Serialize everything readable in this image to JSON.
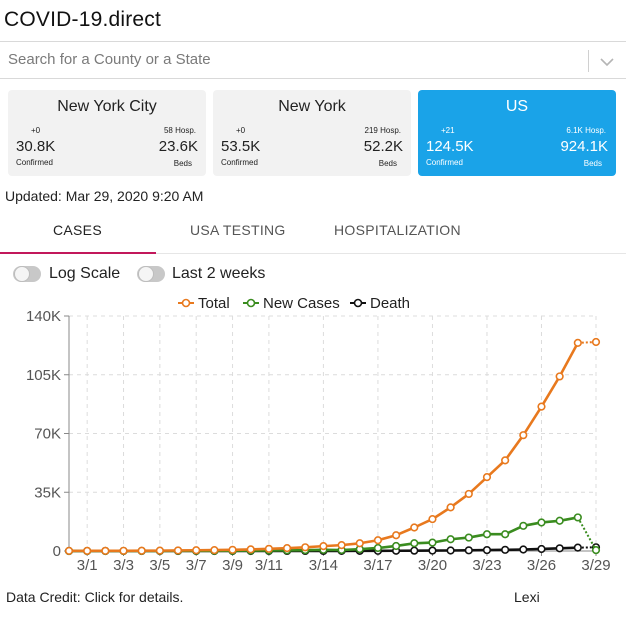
{
  "app": {
    "title": "COVID-19.direct"
  },
  "search": {
    "placeholder": "Search for a County or a State"
  },
  "cards": [
    {
      "title": "New York City",
      "delta": "+0",
      "hosp": "58 Hosp.",
      "confirmed": "30.8K",
      "confirmed_label": "Confirmed",
      "beds": "23.6K",
      "beds_label": "Beds",
      "selected": false
    },
    {
      "title": "New York",
      "delta": "+0",
      "hosp": "219 Hosp.",
      "confirmed": "53.5K",
      "confirmed_label": "Confirmed",
      "beds": "52.2K",
      "beds_label": "Beds",
      "selected": false
    },
    {
      "title": "US",
      "delta": "+21",
      "hosp": "6.1K Hosp.",
      "confirmed": "124.5K",
      "confirmed_label": "Confirmed",
      "beds": "924.1K",
      "beds_label": "Beds",
      "selected": true
    }
  ],
  "updated": "Updated: Mar 29, 2020 9:20 AM",
  "tabs": [
    {
      "label": "CASES",
      "active": true
    },
    {
      "label": "USA TESTING",
      "active": false
    },
    {
      "label": "HOSPITALIZATION",
      "active": false
    }
  ],
  "toggles": [
    {
      "label": "Log Scale",
      "on": false
    },
    {
      "label": "Last 2 weeks",
      "on": false
    }
  ],
  "chart_data": {
    "type": "line",
    "title": "",
    "xlabel": "",
    "ylabel": "",
    "categories": [
      "2/29",
      "3/1",
      "3/2",
      "3/3",
      "3/4",
      "3/5",
      "3/6",
      "3/7",
      "3/8",
      "3/9",
      "3/10",
      "3/11",
      "3/12",
      "3/13",
      "3/14",
      "3/15",
      "3/16",
      "3/17",
      "3/18",
      "3/19",
      "3/20",
      "3/21",
      "3/22",
      "3/23",
      "3/24",
      "3/25",
      "3/26",
      "3/27",
      "3/28",
      "3/29"
    ],
    "tick_labels": [
      "3/1",
      "3/3",
      "3/5",
      "3/7",
      "3/9",
      "3/11",
      "3/14",
      "3/17",
      "3/20",
      "3/23",
      "3/26",
      "3/29"
    ],
    "y_ticks": [
      "0",
      "35K",
      "70K",
      "105K",
      "140K"
    ],
    "ylim": [
      0,
      140000
    ],
    "grid": true,
    "legend_position": "top",
    "series": [
      {
        "name": "Total",
        "color": "#e8791e",
        "values": [
          70,
          90,
          100,
          120,
          160,
          220,
          330,
          440,
          540,
          700,
          960,
          1300,
          1700,
          2200,
          2900,
          3500,
          4600,
          6400,
          9400,
          14000,
          19000,
          26000,
          34000,
          44000,
          54000,
          69000,
          86000,
          104000,
          124000,
          124500
        ]
      },
      {
        "name": "New Cases",
        "color": "#3a8c1f",
        "values": [
          10,
          20,
          10,
          20,
          40,
          60,
          110,
          110,
          100,
          160,
          260,
          340,
          400,
          500,
          700,
          600,
          1100,
          1800,
          3000,
          4600,
          5000,
          7000,
          8000,
          10000,
          10000,
          15000,
          17000,
          18000,
          20000,
          500
        ]
      },
      {
        "name": "Death",
        "color": "#111111",
        "values": [
          0,
          1,
          1,
          2,
          3,
          5,
          7,
          10,
          12,
          15,
          20,
          25,
          30,
          40,
          50,
          60,
          85,
          110,
          150,
          200,
          250,
          300,
          400,
          550,
          700,
          900,
          1200,
          1600,
          2000,
          2200
        ]
      }
    ]
  },
  "footer": {
    "credit": "Data Credit: Click for details.",
    "brand": "Lexi"
  }
}
